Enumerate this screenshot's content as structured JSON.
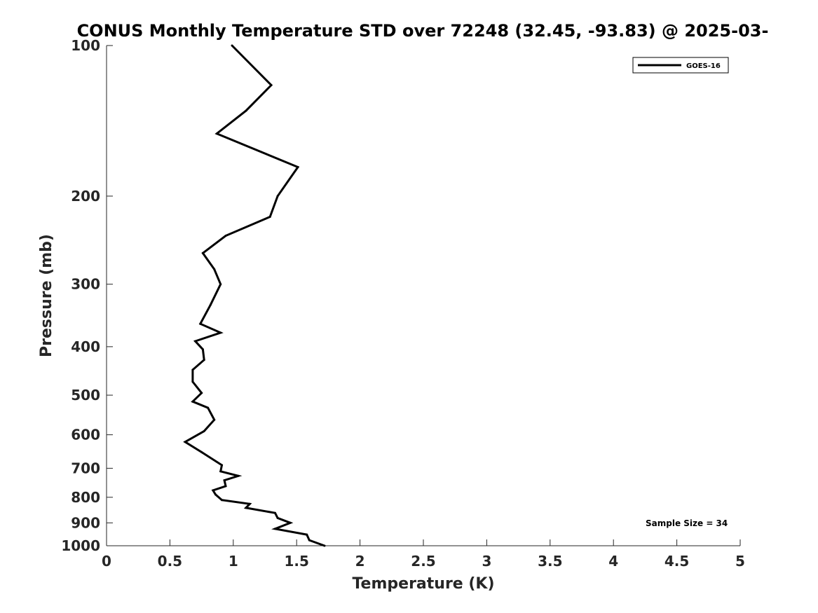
{
  "chart_data": {
    "type": "line",
    "title": "CONUS Monthly Temperature STD over 72248 (32.45, -93.83) @ 2025-03-",
    "xlabel": "Temperature (K)",
    "ylabel": "Pressure (mb)",
    "xlim": [
      0,
      5
    ],
    "ylim": [
      1000,
      100
    ],
    "y_scale": "log",
    "y_direction": "reversed",
    "grid": false,
    "x_ticks": [
      "0",
      "0.5",
      "1",
      "1.5",
      "2",
      "2.5",
      "3",
      "3.5",
      "4",
      "4.5",
      "5"
    ],
    "y_ticks": [
      "100",
      "200",
      "300",
      "400",
      "500",
      "600",
      "700",
      "800",
      "900",
      "1000"
    ],
    "legend": {
      "placement": "top-right",
      "entries": [
        "GOES-16"
      ]
    },
    "annotation": "Sample Size = 34",
    "series": [
      {
        "name": "GOES-16",
        "color": "#000000",
        "x": [
          1.72,
          1.6,
          1.58,
          1.33,
          1.45,
          1.35,
          1.33,
          1.1,
          1.13,
          0.91,
          0.86,
          0.84,
          0.94,
          0.93,
          1.04,
          0.9,
          0.91,
          0.75,
          0.62,
          0.77,
          0.85,
          0.8,
          0.68,
          0.75,
          0.68,
          0.68,
          0.77,
          0.76,
          0.7,
          0.9,
          0.74,
          0.82,
          0.9,
          0.85,
          0.76,
          0.94,
          1.29,
          1.35,
          1.51,
          0.87,
          1.1,
          1.3,
          0.99
        ],
        "y": [
          1000,
          975,
          950,
          925,
          900,
          880,
          860,
          840,
          825,
          810,
          790,
          775,
          760,
          740,
          725,
          710,
          690,
          650,
          620,
          590,
          560,
          530,
          515,
          495,
          470,
          445,
          425,
          405,
          390,
          375,
          360,
          330,
          300,
          280,
          260,
          240,
          220,
          200,
          175,
          150,
          135,
          120,
          100
        ]
      }
    ]
  }
}
